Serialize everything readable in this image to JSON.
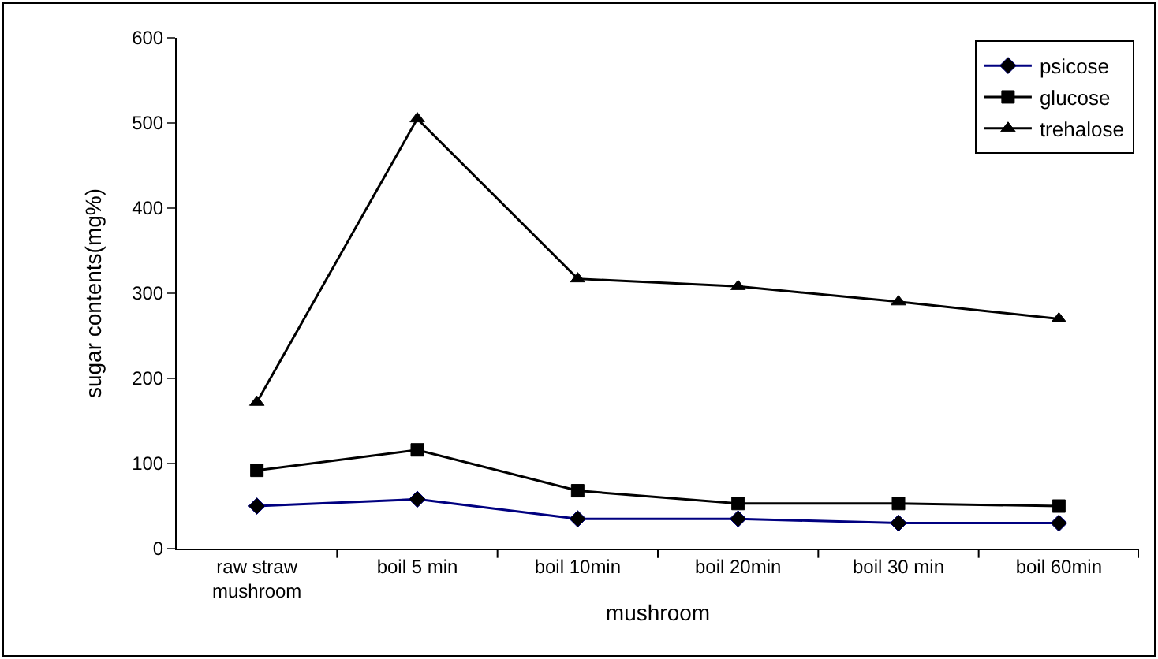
{
  "chart_data": {
    "type": "line",
    "categories": [
      "raw straw\nmushroom",
      "boil 5 min",
      "boil 10min",
      "boil 20min",
      "boil 30 min",
      "boil 60min"
    ],
    "xlabel": "mushroom",
    "ylabel": "sugar contents(mg%)",
    "ylim": [
      0,
      600
    ],
    "yticks": [
      0,
      100,
      200,
      300,
      400,
      500,
      600
    ],
    "legend": "top right",
    "series": [
      {
        "name": "psicose",
        "color": "#000080",
        "marker": "diamond",
        "values": [
          50,
          58,
          35,
          35,
          30,
          30
        ]
      },
      {
        "name": "glucose",
        "color": "#000000",
        "marker": "square",
        "values": [
          92,
          116,
          68,
          53,
          53,
          50
        ]
      },
      {
        "name": "trehalose",
        "color": "#000000",
        "marker": "triangle",
        "values": [
          172,
          505,
          317,
          308,
          290,
          270
        ]
      }
    ]
  }
}
